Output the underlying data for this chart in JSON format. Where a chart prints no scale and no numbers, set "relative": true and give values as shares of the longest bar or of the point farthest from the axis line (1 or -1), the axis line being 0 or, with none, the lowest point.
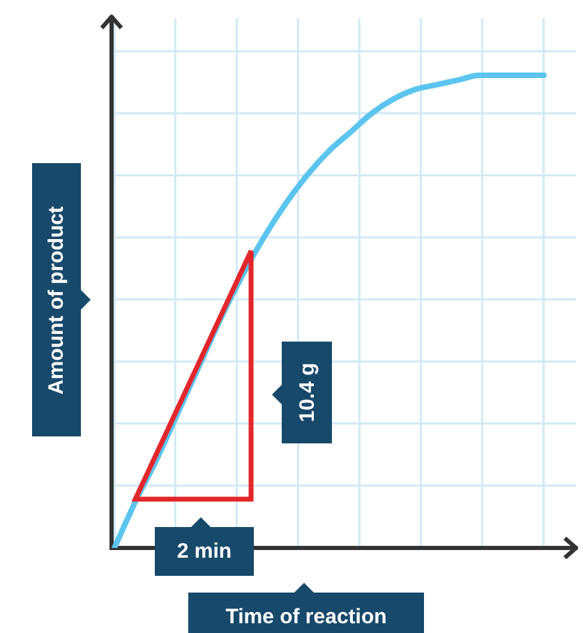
{
  "chart_data": {
    "type": "line",
    "relative": true,
    "xlabel": "Time of reaction",
    "ylabel": "Amount of product",
    "categories": [
      null,
      null,
      null,
      null,
      null,
      null,
      null,
      null,
      null,
      null,
      null,
      null,
      null,
      null,
      null,
      null,
      null,
      null,
      null,
      null,
      null
    ],
    "series": [
      {
        "color": "#5bc4ef",
        "values": [
          0,
          0.1,
          0.19,
          0.29,
          0.39,
          0.49,
          0.58,
          0.66,
          0.73,
          0.79,
          0.84,
          0.88,
          0.92,
          0.95,
          0.97,
          0.98,
          0.99,
          1,
          1,
          1,
          1
        ]
      }
    ],
    "annotations": [
      "2 min",
      "10.4 g"
    ],
    "grid": true,
    "legend": false,
    "marker": "none",
    "line_style": "solid"
  }
}
